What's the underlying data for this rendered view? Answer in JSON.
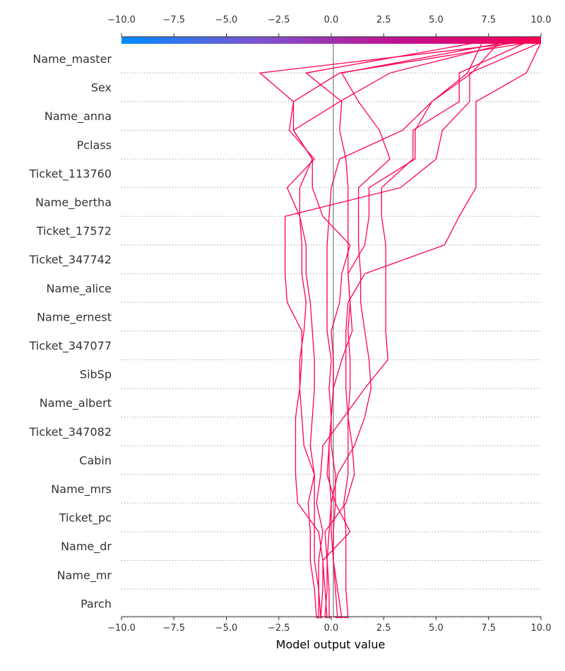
{
  "chart_data": {
    "type": "decision-plot",
    "xlabel": "Model output value",
    "xlim": [
      -10.0,
      10.0
    ],
    "x_ticks": [
      -10.0,
      -7.5,
      -5.0,
      -2.5,
      0.0,
      2.5,
      5.0,
      7.5,
      10.0
    ],
    "x_tick_labels": [
      "−10.0",
      "−7.5",
      "−5.0",
      "−2.5",
      "0.0",
      "2.5",
      "5.0",
      "7.5",
      "10.0"
    ],
    "base_value": 0.1,
    "colorbar": {
      "range": [
        -10.0,
        10.0
      ],
      "colors": [
        "#008bfb",
        "#7d53d0",
        "#c2108f",
        "#ff0052"
      ]
    },
    "line_color": "#ff0052",
    "grid": "dotted-per-feature",
    "features": [
      "Name_master",
      "Sex",
      "Name_anna",
      "Pclass",
      "Ticket_113760",
      "Name_bertha",
      "Ticket_17572",
      "Ticket_347742",
      "Name_alice",
      "Name_ernest",
      "Ticket_347077",
      "SibSp",
      "Name_albert",
      "Ticket_347082",
      "Cabin",
      "Name_mrs",
      "Ticket_pc",
      "Name_dr",
      "Name_mr",
      "Parch"
    ],
    "series_note": "Each series lists cumulative model output from the bottom (Parch) up to the top (final prediction).",
    "series": [
      {
        "values": [
          0.4,
          0.8,
          0.7,
          0.7,
          0.7,
          0.6,
          0.8,
          0.8,
          0.8,
          0.9,
          0.9,
          0.8,
          0.9,
          0.8,
          1.6,
          1.8,
          1.8,
          4.0,
          4.0,
          4.8,
          6.5,
          7.2
        ]
      },
      {
        "values": [
          0.1,
          0.3,
          0.2,
          0.1,
          0.1,
          0.2,
          0.2,
          0.0,
          0.0,
          0.1,
          0.5,
          1.0,
          0.9,
          0.8,
          0.8,
          0.8,
          0.8,
          0.7,
          0.4,
          0.5,
          -1.2,
          7.0
        ]
      },
      {
        "values": [
          0.2,
          0.5,
          0.3,
          0.1,
          0.0,
          0.0,
          -0.1,
          -0.1,
          0.0,
          -0.1,
          0.0,
          -0.2,
          -0.2,
          -0.2,
          -0.2,
          -0.1,
          0.0,
          0.4,
          3.4,
          4.8,
          6.7,
          8.0
        ]
      },
      {
        "values": [
          0.0,
          -0.1,
          -0.1,
          -0.2,
          -0.1,
          0.0,
          0.3,
          1.1,
          1.6,
          1.9,
          1.8,
          1.6,
          1.4,
          1.4,
          1.3,
          1.3,
          1.3,
          2.8,
          2.3,
          1.3,
          0.5,
          8.3
        ]
      },
      {
        "values": [
          -0.3,
          -0.2,
          -0.3,
          -0.4,
          0.9,
          0.2,
          -0.2,
          -0.1,
          0.0,
          0.1,
          0.1,
          0.0,
          0.4,
          0.5,
          0.9,
          -0.4,
          -0.9,
          -0.9,
          -1.8,
          0.4,
          2.8,
          8.6
        ]
      },
      {
        "values": [
          -0.5,
          -0.5,
          -0.6,
          -0.8,
          -0.8,
          -0.8,
          -0.8,
          -1.3,
          -1.4,
          -1.5,
          -1.5,
          -1.3,
          -1.2,
          -1.4,
          -1.4,
          -1.5,
          -1.5,
          -0.9,
          -1.8,
          -1.8,
          -3.4,
          9.0
        ]
      },
      {
        "values": [
          -0.7,
          -0.6,
          -0.6,
          -0.6,
          -0.4,
          -0.7,
          -0.5,
          -0.4,
          0.6,
          1.6,
          2.7,
          2.6,
          2.6,
          2.6,
          2.6,
          2.4,
          2.4,
          3.9,
          3.9,
          6.1,
          6.1,
          9.3
        ]
      },
      {
        "values": [
          -0.6,
          -0.7,
          -0.8,
          -1.0,
          -1.0,
          -1.1,
          -0.8,
          -1.0,
          -0.9,
          -0.8,
          -0.8,
          -0.9,
          -1.0,
          -1.2,
          -1.2,
          -1.5,
          -2.1,
          -0.8,
          -2.0,
          -1.8,
          0.4,
          9.5
        ]
      },
      {
        "values": [
          -0.4,
          -0.5,
          -0.4,
          -0.4,
          -0.6,
          -1.6,
          -1.7,
          -1.7,
          -1.7,
          -1.5,
          -1.4,
          -1.4,
          -2.1,
          -2.2,
          -2.2,
          -2.2,
          3.3,
          5.0,
          5.3,
          6.6,
          6.6,
          10.0
        ]
      },
      {
        "values": [
          -0.3,
          -0.3,
          -0.2,
          -0.2,
          -0.3,
          0.7,
          1.1,
          1.0,
          0.8,
          0.7,
          0.7,
          0.7,
          0.8,
          1.6,
          5.4,
          6.1,
          6.9,
          6.9,
          6.9,
          6.9,
          9.3,
          10.0
        ]
      }
    ]
  }
}
